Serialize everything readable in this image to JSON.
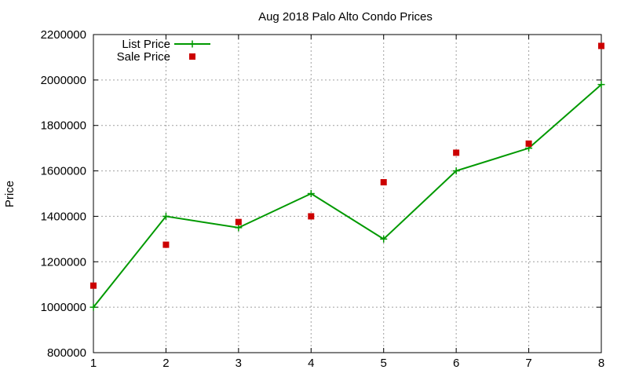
{
  "chart_data": {
    "type": "line",
    "title": "Aug 2018 Palo Alto Condo Prices",
    "xlabel": "",
    "ylabel": "Price",
    "xlim": [
      1,
      8
    ],
    "ylim": [
      800000,
      2200000
    ],
    "x_ticks": [
      "1",
      "2",
      "3",
      "4",
      "5",
      "6",
      "7",
      "8"
    ],
    "y_ticks": [
      "800000",
      "1000000",
      "1200000",
      "1400000",
      "1600000",
      "1800000",
      "2000000",
      "2200000"
    ],
    "grid": true,
    "legend_position": "top-left",
    "x": [
      1,
      2,
      3,
      4,
      5,
      6,
      7,
      8
    ],
    "series": [
      {
        "name": "List Price",
        "style": "line-with-plus-markers",
        "color": "#009900",
        "values": [
          1000000,
          1400000,
          1350000,
          1500000,
          1300000,
          1600000,
          1700000,
          1980000
        ]
      },
      {
        "name": "Sale Price",
        "style": "square-markers",
        "color": "#cc0000",
        "values": [
          1095000,
          1275000,
          1375000,
          1400000,
          1550000,
          1680000,
          1720000,
          2150000
        ]
      }
    ]
  }
}
